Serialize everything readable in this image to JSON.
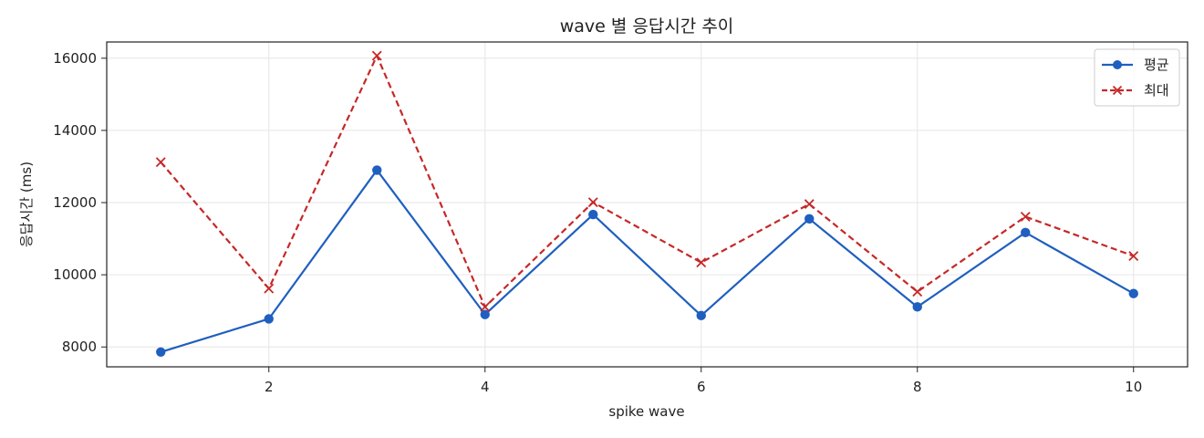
{
  "chart_data": {
    "type": "line",
    "title": "wave 별 응답시간 추이",
    "xlabel": "spike wave",
    "ylabel": "응답시간 (ms)",
    "x": [
      1,
      2,
      3,
      4,
      5,
      6,
      7,
      8,
      9,
      10
    ],
    "xlim": [
      0.5,
      10.5
    ],
    "ylim": [
      7450,
      16450
    ],
    "xticks": [
      2,
      4,
      6,
      8,
      10
    ],
    "yticks": [
      8000,
      10000,
      12000,
      14000,
      16000
    ],
    "grid": true,
    "legend_position": "top-right",
    "series": [
      {
        "name": "평균",
        "color": "#1f5fbf",
        "line_style": "solid",
        "marker": "circle",
        "values": [
          7860,
          8780,
          12900,
          8900,
          11670,
          8870,
          11550,
          9110,
          11170,
          9480
        ]
      },
      {
        "name": "최대",
        "color": "#c62828",
        "line_style": "dashed",
        "marker": "x",
        "values": [
          13120,
          9620,
          16070,
          9110,
          12010,
          10340,
          11960,
          9530,
          11610,
          10520
        ]
      }
    ]
  }
}
